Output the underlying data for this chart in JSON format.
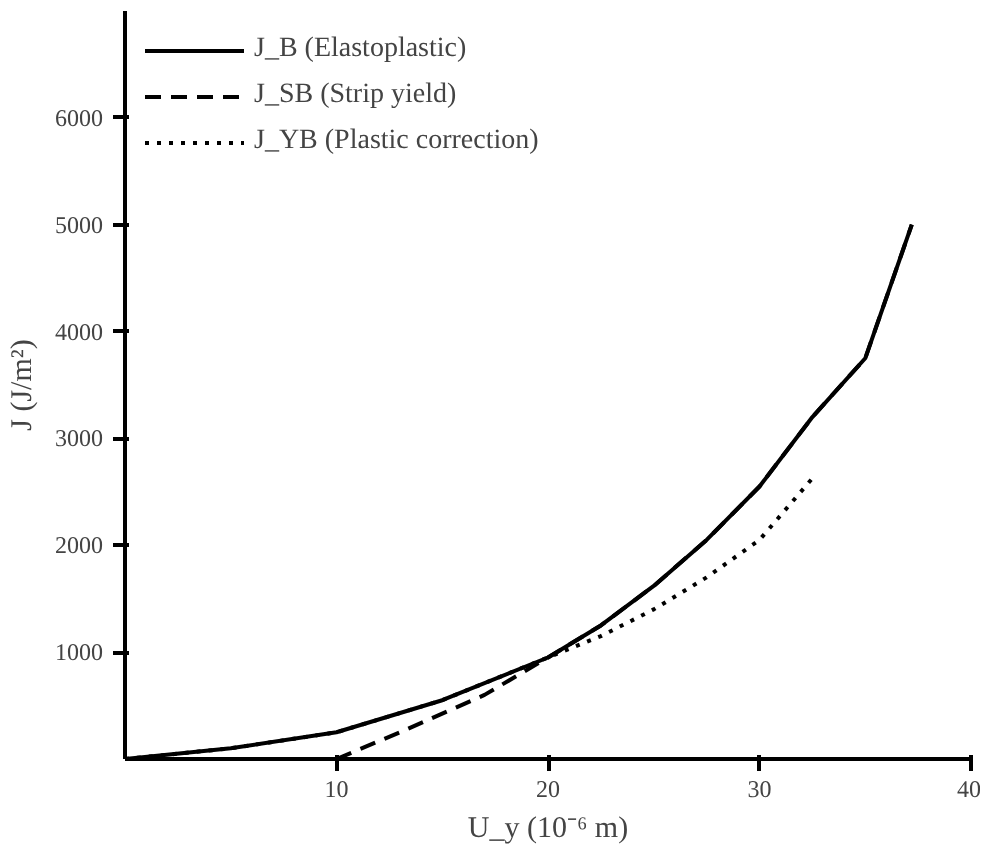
{
  "chart_data": {
    "type": "line",
    "ylabel": "J (J/m²)",
    "xlabel": "U_y (10⁻⁶ m)",
    "xlim": [
      0,
      40
    ],
    "ylim": [
      0,
      7000
    ],
    "xticks": [
      10,
      20,
      30,
      40
    ],
    "yticks": [
      1000,
      2000,
      3000,
      4000,
      5000,
      6000
    ],
    "grid": false,
    "legend": "top left",
    "marker": "none",
    "series": [
      {
        "name": "J_B (Elastoplastic)",
        "color": "#000000",
        "line_style": "solid",
        "x": [
          0,
          5,
          10,
          15,
          20,
          22.5,
          25,
          27.5,
          30,
          32.5,
          35,
          37.2
        ],
        "values": [
          0,
          100,
          250,
          550,
          950,
          1250,
          1620,
          2050,
          2550,
          3200,
          3750,
          5000
        ]
      },
      {
        "name": "J_SB (Strip yield)",
        "color": "#000000",
        "line_style": "dashed",
        "x": [
          10,
          13,
          17,
          20,
          22.5,
          25,
          27.5,
          30,
          32.5,
          35,
          37.2
        ],
        "values": [
          0,
          250,
          600,
          950,
          1250,
          1620,
          2050,
          2550,
          3200,
          3750,
          5000
        ]
      },
      {
        "name": "J_YB (Plastic correction)",
        "color": "#000000",
        "line_style": "dotted",
        "x": [
          0,
          5,
          10,
          15,
          20,
          22.5,
          25,
          27.5,
          30,
          32.6
        ],
        "values": [
          0,
          100,
          250,
          550,
          950,
          1150,
          1400,
          1700,
          2050,
          2650
        ]
      }
    ]
  }
}
